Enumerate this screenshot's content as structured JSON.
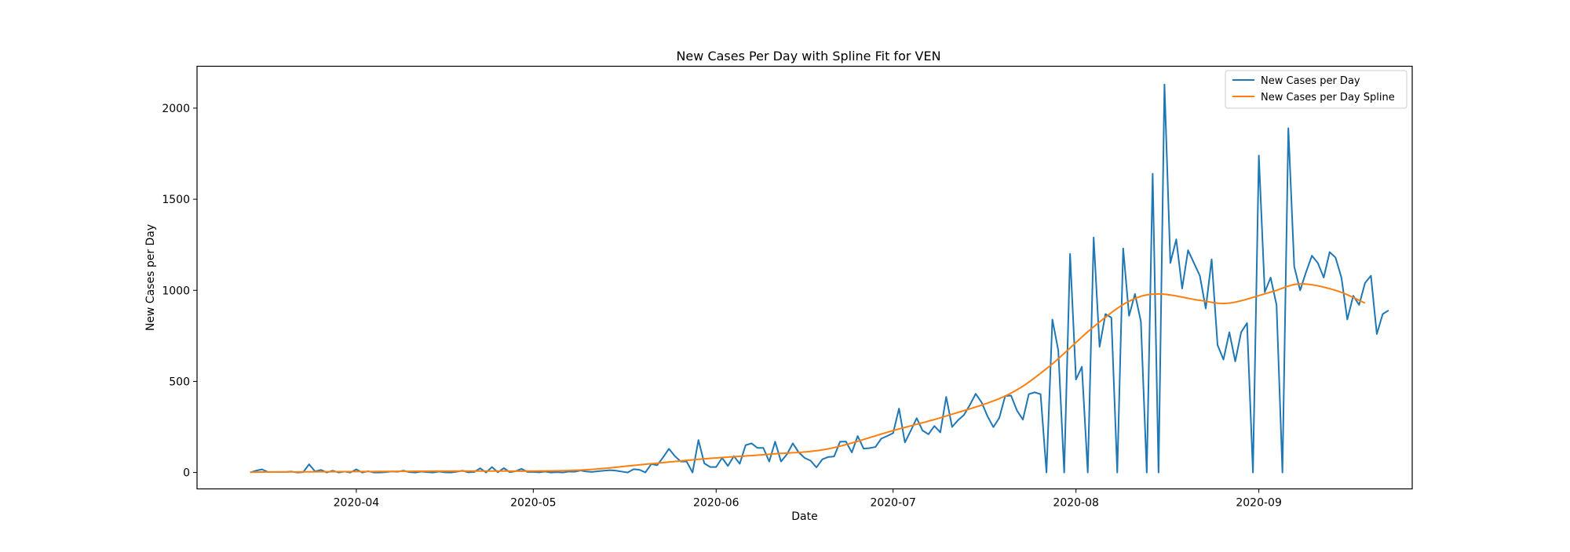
{
  "chart_data": {
    "type": "line",
    "title": "New Cases Per Day with Spline Fit for VEN",
    "xlabel": "Date",
    "ylabel": "New Cases per Day",
    "x_start": "2020-03-14",
    "x_end": "2020-09-19",
    "xlim": [
      "2020-03-05",
      "2020-09-27"
    ],
    "ylim": [
      -90,
      2230
    ],
    "x_ticks": [
      "2020-04-01",
      "2020-05-01",
      "2020-06-01",
      "2020-07-01",
      "2020-08-01",
      "2020-09-01"
    ],
    "x_tick_labels": [
      "2020-04",
      "2020-05",
      "2020-06",
      "2020-07",
      "2020-08",
      "2020-09"
    ],
    "y_ticks": [
      0,
      500,
      1000,
      1500,
      2000
    ],
    "y_tick_labels": [
      "0",
      "500",
      "1000",
      "1500",
      "2000"
    ],
    "grid": false,
    "legend_position": "upper right",
    "series": [
      {
        "name": "New Cases per Day",
        "color": "#1f77b4",
        "values": [
          0,
          10,
          17,
          3,
          3,
          3,
          3,
          5,
          0,
          2,
          45,
          6,
          14,
          0,
          10,
          0,
          5,
          0,
          17,
          0,
          7,
          0,
          0,
          2,
          6,
          4,
          10,
          2,
          0,
          5,
          2,
          0,
          5,
          1,
          0,
          4,
          10,
          1,
          3,
          23,
          0,
          30,
          1,
          24,
          2,
          7,
          20,
          3,
          3,
          1,
          5,
          0,
          2,
          0,
          5,
          4,
          11,
          5,
          3,
          7,
          10,
          13,
          10,
          5,
          0,
          18,
          15,
          0,
          46,
          40,
          83,
          130,
          90,
          60,
          60,
          0,
          178,
          50,
          30,
          30,
          80,
          36,
          90,
          48,
          150,
          160,
          135,
          135,
          60,
          169,
          60,
          100,
          160,
          110,
          80,
          65,
          28,
          72,
          85,
          88,
          169,
          170,
          110,
          200,
          131,
          134,
          140,
          186,
          200,
          216,
          351,
          165,
          230,
          298,
          230,
          210,
          255,
          220,
          415,
          250,
          287,
          315,
          370,
          432,
          385,
          309,
          249,
          300,
          420,
          422,
          340,
          290,
          430,
          440,
          430,
          0,
          840,
          670,
          0,
          1200,
          510,
          580,
          0,
          1290,
          690,
          870,
          850,
          0,
          1230,
          860,
          980,
          830,
          0,
          1640,
          0,
          2130,
          1150,
          1280,
          1010,
          1220,
          1150,
          1080,
          900,
          1170,
          700,
          620,
          770,
          610,
          770,
          820,
          0,
          1740,
          990,
          1070,
          920,
          0,
          1890,
          1130,
          1000,
          1100,
          1190,
          1150,
          1070,
          1210,
          1180,
          1070,
          840,
          970,
          920,
          1040,
          1080,
          760,
          870,
          890
        ]
      },
      {
        "name": "New Cases per Day Spline",
        "color": "#ff7f0e",
        "values": []
      }
    ],
    "spline_knots": [
      [
        "2020-03-14",
        2
      ],
      [
        "2020-04-01",
        5
      ],
      [
        "2020-04-20",
        8
      ],
      [
        "2020-05-01",
        8
      ],
      [
        "2020-05-10",
        15
      ],
      [
        "2020-05-20",
        45
      ],
      [
        "2020-05-30",
        75
      ],
      [
        "2020-06-10",
        100
      ],
      [
        "2020-06-20",
        130
      ],
      [
        "2020-07-01",
        230
      ],
      [
        "2020-07-10",
        310
      ],
      [
        "2020-07-20",
        420
      ],
      [
        "2020-07-27",
        570
      ],
      [
        "2020-08-04",
        800
      ],
      [
        "2020-08-10",
        940
      ],
      [
        "2020-08-15",
        980
      ],
      [
        "2020-08-22",
        945
      ],
      [
        "2020-08-27",
        930
      ],
      [
        "2020-09-03",
        990
      ],
      [
        "2020-09-08",
        1035
      ],
      [
        "2020-09-14",
        1000
      ],
      [
        "2020-09-19",
        930
      ]
    ]
  }
}
